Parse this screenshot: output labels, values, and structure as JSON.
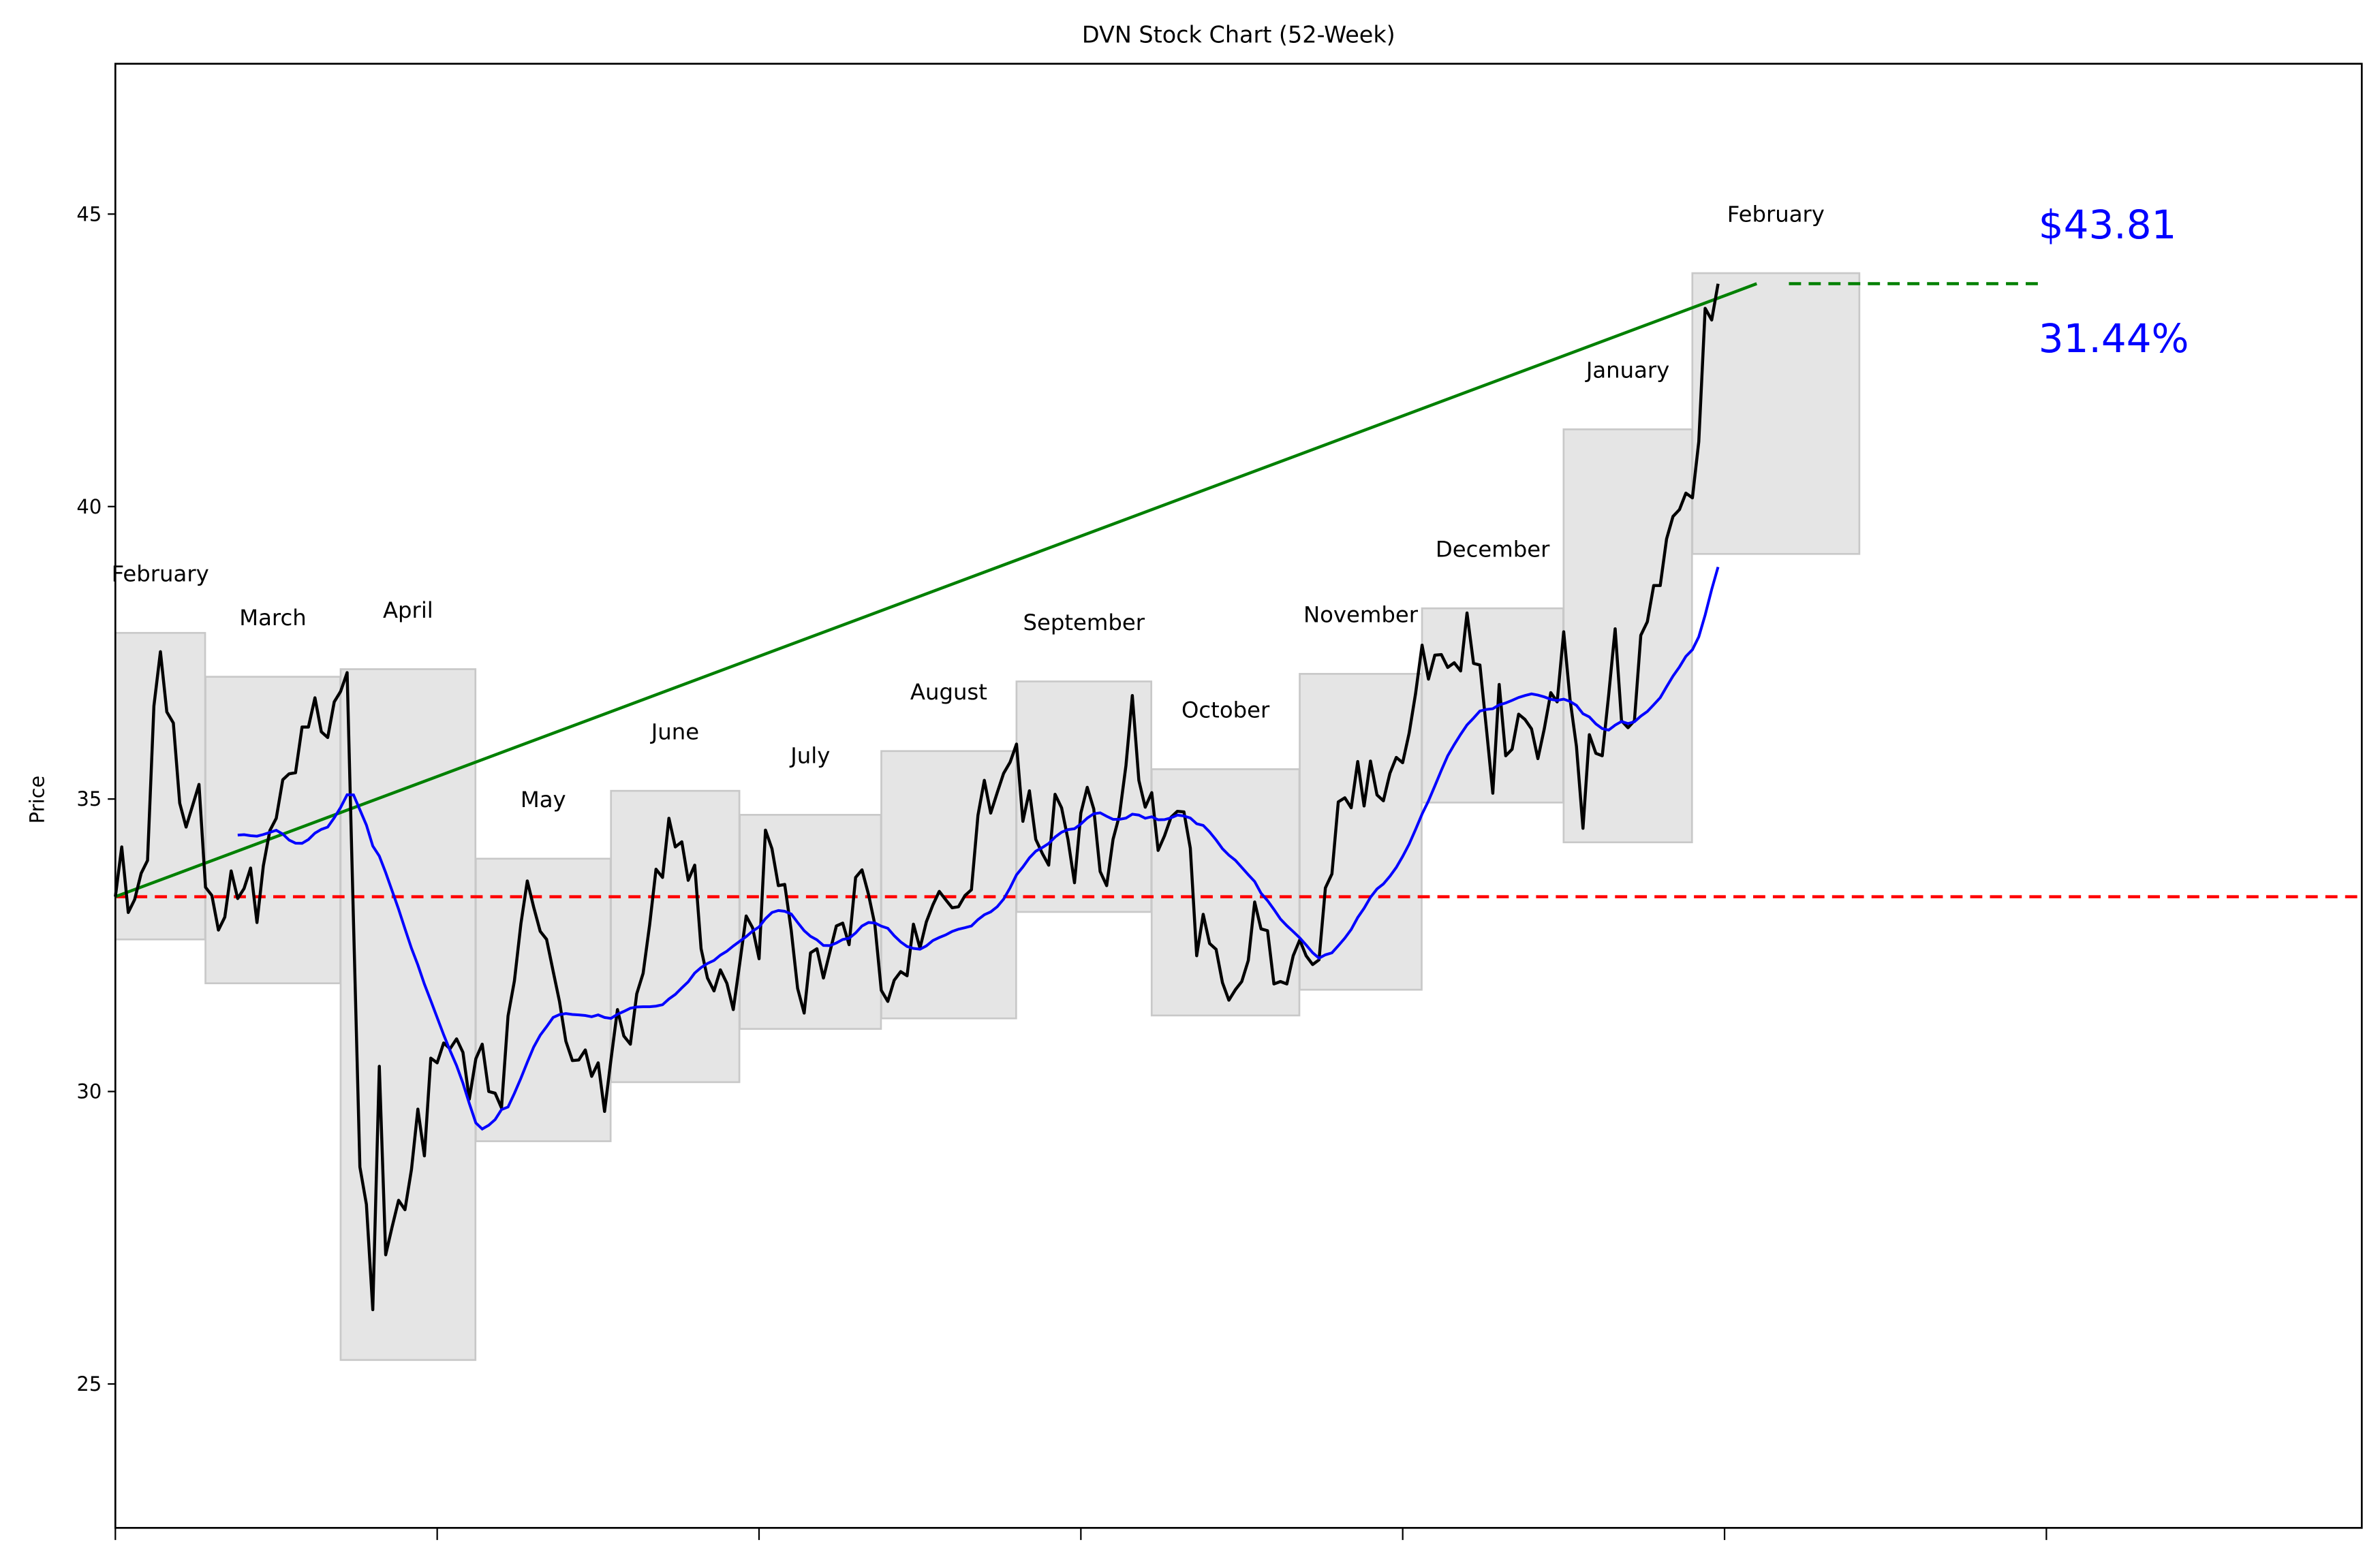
{
  "chart_data": {
    "type": "line",
    "title": "DVN Stock Chart (52-Week)",
    "xlabel": "",
    "ylabel": "Price",
    "ylim": [
      22.54,
      47.57
    ],
    "xlim": [
      0,
      349
    ],
    "x_ticks": [
      0,
      50,
      100,
      150,
      200,
      250,
      300
    ],
    "y_ticks": [
      25,
      30,
      35,
      40,
      45
    ],
    "grid": false,
    "colors": {
      "price": "#000000",
      "moving_average": "#0000ff",
      "trend": "#008000",
      "baseline": "#ff0000",
      "target": "#008000",
      "month_box_fill": "#e5e5e5",
      "month_box_edge": "#c8c8c8",
      "annotation": "#0000ff"
    },
    "price": [
      33.33,
      34.18,
      33.06,
      33.28,
      33.73,
      33.95,
      36.59,
      37.52,
      36.49,
      36.3,
      34.93,
      34.52,
      34.89,
      35.25,
      33.49,
      33.35,
      32.76,
      32.98,
      33.77,
      33.3,
      33.47,
      33.82,
      32.89,
      33.86,
      34.46,
      34.67,
      35.33,
      35.43,
      35.45,
      36.23,
      36.23,
      36.73,
      36.15,
      36.05,
      36.66,
      36.84,
      37.16,
      32.9,
      28.71,
      28.07,
      26.27,
      30.43,
      27.21,
      27.68,
      28.14,
      27.98,
      28.67,
      29.7,
      28.9,
      30.57,
      30.49,
      30.83,
      30.73,
      30.9,
      30.67,
      29.87,
      30.56,
      30.81,
      30.0,
      29.97,
      29.72,
      31.29,
      31.89,
      32.87,
      33.6,
      33.15,
      32.74,
      32.6,
      32.06,
      31.54,
      30.86,
      30.53,
      30.54,
      30.71,
      30.26,
      30.49,
      29.66,
      30.54,
      31.4,
      30.95,
      30.81,
      31.67,
      32.02,
      32.85,
      33.8,
      33.66,
      34.67,
      34.18,
      34.27,
      33.61,
      33.87,
      32.44,
      31.94,
      31.72,
      32.08,
      31.85,
      31.4,
      32.18,
      33.0,
      32.8,
      32.27,
      34.47,
      34.15,
      33.52,
      33.54,
      32.75,
      31.76,
      31.34,
      32.37,
      32.44,
      31.94,
      32.38,
      32.83,
      32.88,
      32.51,
      33.66,
      33.79,
      33.37,
      32.85,
      31.73,
      31.54,
      31.9,
      32.05,
      31.98,
      32.86,
      32.45,
      32.9,
      33.19,
      33.42,
      33.28,
      33.14,
      33.16,
      33.35,
      33.45,
      34.72,
      35.32,
      34.76,
      35.11,
      35.44,
      35.63,
      35.94,
      34.62,
      35.14,
      34.31,
      34.07,
      33.87,
      35.08,
      34.85,
      34.31,
      33.57,
      34.76,
      35.2,
      34.83,
      33.76,
      33.52,
      34.31,
      34.72,
      35.57,
      36.77,
      35.32,
      34.86,
      35.11,
      34.12,
      34.37,
      34.69,
      34.79,
      34.78,
      34.16,
      32.32,
      33.03,
      32.53,
      32.43,
      31.86,
      31.56,
      31.74,
      31.88,
      32.24,
      33.24,
      32.78,
      32.75,
      31.84,
      31.88,
      31.84,
      32.32,
      32.59,
      32.32,
      32.17,
      32.25,
      33.48,
      33.72,
      34.95,
      35.02,
      34.85,
      35.64,
      34.88,
      35.65,
      35.07,
      34.97,
      35.44,
      35.71,
      35.62,
      36.13,
      36.8,
      37.63,
      37.05,
      37.46,
      37.47,
      37.25,
      37.33,
      37.19,
      38.18,
      37.32,
      37.29,
      36.2,
      35.1,
      36.96,
      35.74,
      35.85,
      36.45,
      36.36,
      36.2,
      35.69,
      36.2,
      36.82,
      36.66,
      37.86,
      36.7,
      35.9,
      34.5,
      36.1,
      35.78,
      35.74,
      36.77,
      37.91,
      36.34,
      36.22,
      36.34,
      37.8,
      38.03,
      38.65,
      38.65,
      39.45,
      39.83,
      39.95,
      40.23,
      40.15,
      41.11,
      43.39,
      43.19,
      43.81
    ],
    "baseline_price": 33.33,
    "trend_line": {
      "from": [
        0,
        33.33
      ],
      "to": [
        255,
        43.81
      ]
    },
    "target_line": {
      "from": 260,
      "to": 299,
      "value": 43.81
    },
    "months": [
      {
        "label": "February",
        "start": 0,
        "end": 13,
        "low": 32.6,
        "high": 37.84
      },
      {
        "label": "March",
        "start": 14,
        "end": 34,
        "low": 31.85,
        "high": 37.09
      },
      {
        "label": "April",
        "start": 35,
        "end": 55,
        "low": 25.41,
        "high": 37.22
      },
      {
        "label": "May",
        "start": 56,
        "end": 76,
        "low": 29.15,
        "high": 33.98
      },
      {
        "label": "June",
        "start": 77,
        "end": 96,
        "low": 30.16,
        "high": 35.14
      },
      {
        "label": "July",
        "start": 97,
        "end": 118,
        "low": 31.07,
        "high": 34.73
      },
      {
        "label": "August",
        "start": 119,
        "end": 139,
        "low": 31.25,
        "high": 35.82
      },
      {
        "label": "September",
        "start": 140,
        "end": 160,
        "low": 33.07,
        "high": 37.01
      },
      {
        "label": "October",
        "start": 161,
        "end": 183,
        "low": 31.3,
        "high": 35.51
      },
      {
        "label": "November",
        "start": 184,
        "end": 202,
        "low": 31.74,
        "high": 37.14
      },
      {
        "label": "December",
        "start": 203,
        "end": 224,
        "low": 34.94,
        "high": 38.26
      },
      {
        "label": "January",
        "start": 225,
        "end": 244,
        "low": 34.26,
        "high": 41.32
      },
      {
        "label": "February",
        "start": 245,
        "end": 270,
        "low": 39.19,
        "high": 43.99
      }
    ],
    "annotations": {
      "last_price": "$43.81",
      "change_pct": "31.44%"
    }
  }
}
